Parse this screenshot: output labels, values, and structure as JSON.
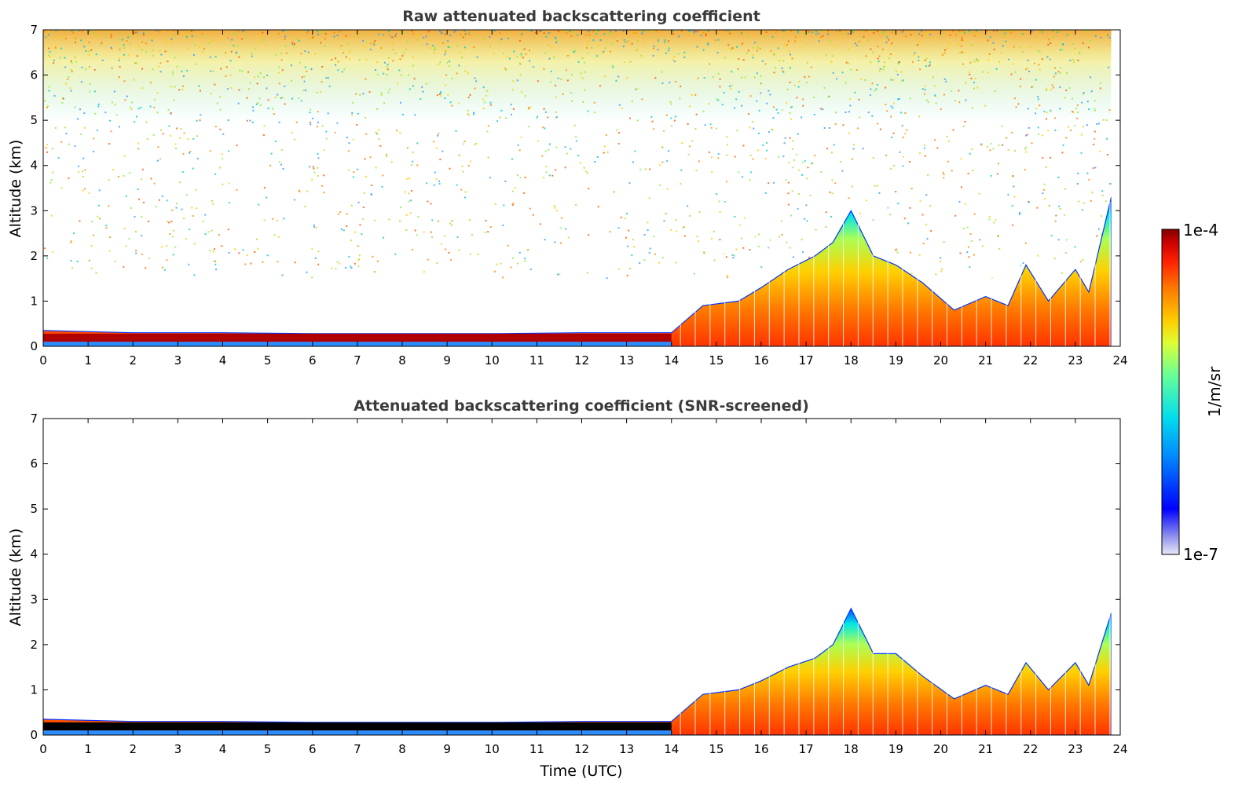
{
  "chart_data": [
    {
      "type": "heatmap",
      "title": "Raw attenuated backscattering coefficient",
      "xlabel": "",
      "ylabel": "Altitude (km)",
      "xlim": [
        0,
        24
      ],
      "ylim": [
        0,
        7
      ],
      "xticks": [
        "0",
        "1",
        "2",
        "3",
        "4",
        "5",
        "6",
        "7",
        "8",
        "9",
        "10",
        "11",
        "12",
        "13",
        "14",
        "15",
        "16",
        "17",
        "18",
        "19",
        "20",
        "21",
        "22",
        "23",
        "24"
      ],
      "yticks": [
        "0",
        "1",
        "2",
        "3",
        "4",
        "5",
        "6",
        "7"
      ],
      "screened": false,
      "noise_floor_km": 6.0,
      "boundary_layer_top_km": [
        {
          "t": 0,
          "h": 0.35
        },
        {
          "t": 2,
          "h": 0.3
        },
        {
          "t": 4,
          "h": 0.3
        },
        {
          "t": 6,
          "h": 0.28
        },
        {
          "t": 8,
          "h": 0.28
        },
        {
          "t": 10,
          "h": 0.28
        },
        {
          "t": 12,
          "h": 0.3
        },
        {
          "t": 14,
          "h": 0.3
        },
        {
          "t": 14.7,
          "h": 0.9
        },
        {
          "t": 15.5,
          "h": 1.0
        },
        {
          "t": 16,
          "h": 1.3
        },
        {
          "t": 16.6,
          "h": 1.7
        },
        {
          "t": 17.2,
          "h": 2.0
        },
        {
          "t": 17.6,
          "h": 2.3
        },
        {
          "t": 18.0,
          "h": 3.0
        },
        {
          "t": 18.5,
          "h": 2.0
        },
        {
          "t": 19.0,
          "h": 1.8
        },
        {
          "t": 19.6,
          "h": 1.4
        },
        {
          "t": 20.3,
          "h": 0.8
        },
        {
          "t": 21.0,
          "h": 1.1
        },
        {
          "t": 21.5,
          "h": 0.9
        },
        {
          "t": 21.9,
          "h": 1.8
        },
        {
          "t": 22.4,
          "h": 1.0
        },
        {
          "t": 23.0,
          "h": 1.7
        },
        {
          "t": 23.3,
          "h": 1.2
        },
        {
          "t": 23.8,
          "h": 3.3
        }
      ]
    },
    {
      "type": "heatmap",
      "title": "Attenuated backscattering coefficient (SNR-screened)",
      "xlabel": "Time (UTC)",
      "ylabel": "Altitude (km)",
      "xlim": [
        0,
        24
      ],
      "ylim": [
        0,
        7
      ],
      "xticks": [
        "0",
        "1",
        "2",
        "3",
        "4",
        "5",
        "6",
        "7",
        "8",
        "9",
        "10",
        "11",
        "12",
        "13",
        "14",
        "15",
        "16",
        "17",
        "18",
        "19",
        "20",
        "21",
        "22",
        "23",
        "24"
      ],
      "yticks": [
        "0",
        "1",
        "2",
        "3",
        "4",
        "5",
        "6",
        "7"
      ],
      "screened": true,
      "boundary_layer_top_km": [
        {
          "t": 0,
          "h": 0.35
        },
        {
          "t": 2,
          "h": 0.3
        },
        {
          "t": 4,
          "h": 0.3
        },
        {
          "t": 6,
          "h": 0.28
        },
        {
          "t": 8,
          "h": 0.28
        },
        {
          "t": 10,
          "h": 0.28
        },
        {
          "t": 12,
          "h": 0.3
        },
        {
          "t": 14,
          "h": 0.3
        },
        {
          "t": 14.7,
          "h": 0.9
        },
        {
          "t": 15.5,
          "h": 1.0
        },
        {
          "t": 16,
          "h": 1.2
        },
        {
          "t": 16.6,
          "h": 1.5
        },
        {
          "t": 17.2,
          "h": 1.7
        },
        {
          "t": 17.6,
          "h": 2.0
        },
        {
          "t": 18.0,
          "h": 2.8
        },
        {
          "t": 18.5,
          "h": 1.8
        },
        {
          "t": 19.0,
          "h": 1.8
        },
        {
          "t": 19.6,
          "h": 1.3
        },
        {
          "t": 20.3,
          "h": 0.8
        },
        {
          "t": 21.0,
          "h": 1.1
        },
        {
          "t": 21.5,
          "h": 0.9
        },
        {
          "t": 21.9,
          "h": 1.6
        },
        {
          "t": 22.4,
          "h": 1.0
        },
        {
          "t": 23.0,
          "h": 1.6
        },
        {
          "t": 23.3,
          "h": 1.1
        },
        {
          "t": 23.8,
          "h": 2.7
        }
      ]
    }
  ],
  "colorbar": {
    "max_label": "1e-4",
    "min_label": "1e-7",
    "unit_label": "1/m/sr",
    "colormap": [
      "#e8e8f8",
      "#9999ee",
      "#0000ff",
      "#0088ff",
      "#00ddee",
      "#66ff99",
      "#ddff33",
      "#ffcc00",
      "#ff7700",
      "#ff2200",
      "#cc0000",
      "#800000"
    ]
  }
}
